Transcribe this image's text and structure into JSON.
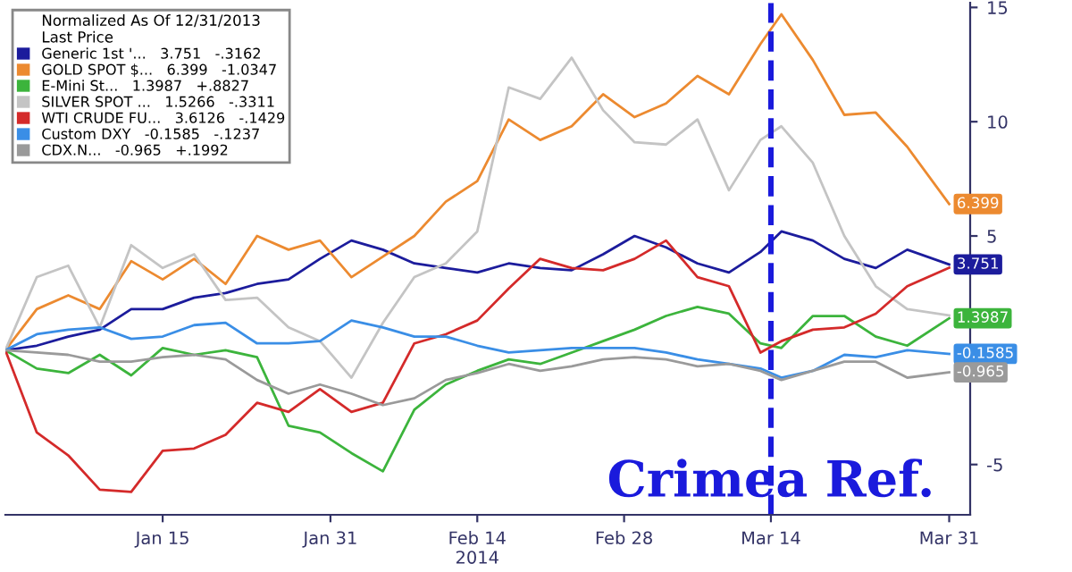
{
  "chart_data": {
    "type": "line",
    "legend_title": "Normalized As Of 12/31/2013\nLast Price",
    "x": [
      "2013-12-31",
      "2014-01-03",
      "2014-01-06",
      "2014-01-09",
      "2014-01-12",
      "2014-01-15",
      "2014-01-18",
      "2014-01-21",
      "2014-01-24",
      "2014-01-27",
      "2014-01-30",
      "2014-02-02",
      "2014-02-05",
      "2014-02-08",
      "2014-02-11",
      "2014-02-14",
      "2014-02-17",
      "2014-02-20",
      "2014-02-23",
      "2014-02-26",
      "2014-03-01",
      "2014-03-04",
      "2014-03-07",
      "2014-03-10",
      "2014-03-13",
      "2014-03-15",
      "2014-03-18",
      "2014-03-21",
      "2014-03-24",
      "2014-03-27",
      "2014-03-31"
    ],
    "series": [
      {
        "name": "Generic 1st '...   3.751   -.3162",
        "color": "#1c1c9c",
        "values": [
          0,
          0.2,
          0.6,
          0.9,
          1.8,
          1.8,
          2.3,
          2.5,
          2.9,
          3.1,
          4.0,
          4.8,
          4.4,
          3.8,
          3.6,
          3.4,
          3.8,
          3.6,
          3.5,
          4.2,
          5.0,
          4.5,
          3.8,
          3.4,
          4.3,
          5.2,
          4.8,
          4.0,
          3.6,
          4.4,
          3.751
        ],
        "value_labels": [
          null,
          null,
          null,
          null,
          null,
          null,
          null,
          null,
          null,
          null,
          null,
          null,
          null,
          null,
          null,
          null,
          null,
          null,
          null,
          null,
          null,
          null,
          null,
          null,
          null,
          null,
          null,
          null,
          null,
          null,
          "3.751"
        ]
      },
      {
        "name": "GOLD SPOT $...   6.399   -1.0347",
        "color": "#ec8a30",
        "values": [
          0,
          1.8,
          2.4,
          1.8,
          3.9,
          3.1,
          4.0,
          2.9,
          5.0,
          4.4,
          4.8,
          3.2,
          4.1,
          5.0,
          6.5,
          7.4,
          10.1,
          9.2,
          9.8,
          11.2,
          10.2,
          10.8,
          12.0,
          11.2,
          13.4,
          14.7,
          12.7,
          10.3,
          10.4,
          8.9,
          6.399
        ],
        "value_labels": [
          null,
          null,
          null,
          null,
          null,
          null,
          null,
          null,
          null,
          null,
          null,
          null,
          null,
          null,
          null,
          null,
          null,
          null,
          null,
          null,
          null,
          null,
          null,
          null,
          null,
          null,
          null,
          null,
          null,
          null,
          "6.399"
        ]
      },
      {
        "name": "E-Mini St...   1.3987   +.8827",
        "color": "#3cb43c",
        "values": [
          0,
          -0.8,
          -1.0,
          -0.2,
          -1.1,
          0.1,
          -0.2,
          0,
          -0.3,
          -3.3,
          -3.6,
          -4.5,
          -5.3,
          -2.6,
          -1.5,
          -0.9,
          -0.4,
          -0.6,
          -0.1,
          0.4,
          0.9,
          1.5,
          1.9,
          1.6,
          0.3,
          0.1,
          1.5,
          1.5,
          0.6,
          0.2,
          1.3987
        ],
        "value_labels": [
          null,
          null,
          null,
          null,
          null,
          null,
          null,
          null,
          null,
          null,
          null,
          null,
          null,
          null,
          null,
          null,
          null,
          null,
          null,
          null,
          null,
          null,
          null,
          null,
          null,
          null,
          null,
          null,
          null,
          null,
          "1.3987"
        ]
      },
      {
        "name": "SILVER SPOT ...   1.5266   -.3311",
        "color": "#c4c4c4",
        "values": [
          0,
          3.2,
          3.7,
          1.0,
          4.6,
          3.6,
          4.2,
          2.2,
          2.3,
          1.0,
          0.4,
          -1.2,
          1.2,
          3.2,
          3.8,
          5.2,
          11.5,
          11.0,
          12.8,
          10.5,
          9.1,
          9.0,
          10.1,
          7.0,
          9.2,
          9.8,
          8.2,
          5.0,
          2.8,
          1.8,
          1.5266
        ]
      },
      {
        "name": "WTI CRUDE FU...   3.6126   -.1429",
        "color": "#d42a2a",
        "values": [
          0,
          -3.6,
          -4.6,
          -6.1,
          -6.2,
          -4.4,
          -4.3,
          -3.7,
          -2.3,
          -2.7,
          -1.7,
          -2.7,
          -2.3,
          0.3,
          0.7,
          1.3,
          2.7,
          4.0,
          3.6,
          3.5,
          4.0,
          4.8,
          3.2,
          2.8,
          -0.1,
          0.4,
          0.9,
          1.0,
          1.6,
          2.8,
          3.6126
        ]
      },
      {
        "name": "Custom DXY   -0.1585   -.1237",
        "color": "#3a8ee6",
        "values": [
          0,
          0.7,
          0.9,
          1.0,
          0.5,
          0.6,
          1.1,
          1.2,
          0.3,
          0.3,
          0.4,
          1.3,
          1.0,
          0.6,
          0.6,
          0.2,
          -0.1,
          0,
          0.1,
          0.1,
          0.1,
          -0.1,
          -0.4,
          -0.6,
          -0.8,
          -1.2,
          -0.9,
          -0.2,
          -0.3,
          0.0,
          -0.1585
        ],
        "value_labels": [
          null,
          null,
          null,
          null,
          null,
          null,
          null,
          null,
          null,
          null,
          null,
          null,
          null,
          null,
          null,
          null,
          null,
          null,
          null,
          null,
          null,
          null,
          null,
          null,
          null,
          null,
          null,
          null,
          null,
          null,
          "-0.1585"
        ]
      },
      {
        "name": "CDX.N...   -0.965   +.1992",
        "color": "#9a9a9a",
        "values": [
          0,
          -0.1,
          -0.2,
          -0.5,
          -0.5,
          -0.3,
          -0.2,
          -0.4,
          -1.3,
          -1.9,
          -1.5,
          -1.9,
          -2.4,
          -2.1,
          -1.3,
          -1.0,
          -0.6,
          -0.9,
          -0.7,
          -0.4,
          -0.3,
          -0.4,
          -0.7,
          -0.6,
          -0.9,
          -1.3,
          -0.9,
          -0.5,
          -0.5,
          -1.2,
          -0.965
        ],
        "value_labels": [
          null,
          null,
          null,
          null,
          null,
          null,
          null,
          null,
          null,
          null,
          null,
          null,
          null,
          null,
          null,
          null,
          null,
          null,
          null,
          null,
          null,
          null,
          null,
          null,
          null,
          null,
          null,
          null,
          null,
          null,
          "-0.965"
        ]
      }
    ],
    "xlim": [
      "2013-12-31",
      "2014-04-02"
    ],
    "xticks": [
      {
        "value": "2014-01-15",
        "label": "Jan 15"
      },
      {
        "value": "2014-01-31",
        "label": "Jan 31"
      },
      {
        "value": "2014-02-14",
        "label": "Feb 14\n2014"
      },
      {
        "value": "2014-02-28",
        "label": "Feb 28"
      },
      {
        "value": "2014-03-14",
        "label": "Mar 14"
      },
      {
        "value": "2014-03-31",
        "label": "Mar 31"
      }
    ],
    "ylim": [
      -7.2,
      15.2
    ],
    "yticks": [
      -5,
      {
        "value": 0,
        "label": null
      },
      5,
      10,
      15
    ],
    "ref_lines": [
      {
        "axis": "x",
        "value": "2014-03-14",
        "label": "Crimea Ref.",
        "color": "#1a1adc",
        "line_style": "dashed"
      }
    ],
    "legend": "top left",
    "grid": false,
    "marker": "none",
    "line_style": "solid"
  }
}
